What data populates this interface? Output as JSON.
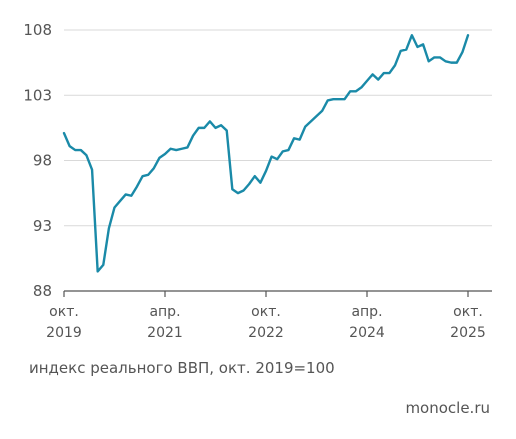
{
  "chart_data": {
    "type": "line",
    "title": "",
    "caption": "индекс реального ВВП, окт. 2019=100",
    "source": "monocle.ru",
    "y_ticks": [
      88,
      93,
      98,
      103,
      108
    ],
    "ylim": [
      88,
      108
    ],
    "x_ticks": [
      {
        "date": "2019-10",
        "line1": "окт.",
        "line2": "2019"
      },
      {
        "date": "2021-04",
        "line1": "апр.",
        "line2": "2021"
      },
      {
        "date": "2022-10",
        "line1": "окт.",
        "line2": "2022"
      },
      {
        "date": "2024-04",
        "line1": "апр.",
        "line2": "2024"
      },
      {
        "date": "2025-10",
        "line1": "окт.",
        "line2": "2025"
      }
    ],
    "xlim": [
      "2019-10",
      "2025-10"
    ],
    "grid": true,
    "line_color": "#1a8aa8",
    "series": [
      {
        "x": [
          "2019-10",
          "2019-11",
          "2019-12",
          "2020-01",
          "2020-02",
          "2020-03",
          "2020-04",
          "2020-05",
          "2020-06",
          "2020-07",
          "2020-08",
          "2020-09",
          "2020-10",
          "2020-11",
          "2020-12",
          "2021-01",
          "2021-02",
          "2021-03",
          "2021-04",
          "2021-05",
          "2021-06",
          "2021-07",
          "2021-08",
          "2021-09",
          "2021-10",
          "2021-11",
          "2021-12",
          "2022-01",
          "2022-02",
          "2022-03",
          "2022-04",
          "2022-05",
          "2022-06",
          "2022-07",
          "2022-08",
          "2022-09",
          "2022-10",
          "2022-11",
          "2022-12",
          "2023-01",
          "2023-02",
          "2023-03",
          "2023-04",
          "2023-05",
          "2023-06",
          "2023-07",
          "2023-08",
          "2023-09",
          "2023-10",
          "2023-11",
          "2023-12",
          "2024-01",
          "2024-02",
          "2024-03",
          "2024-04",
          "2024-05",
          "2024-06",
          "2024-07",
          "2024-08",
          "2024-09",
          "2024-10",
          "2024-11",
          "2024-12",
          "2025-01",
          "2025-02",
          "2025-03",
          "2025-04",
          "2025-05",
          "2025-06",
          "2025-07",
          "2025-08",
          "2025-09",
          "2025-10"
        ],
        "values": [
          100.1,
          99.1,
          98.8,
          98.8,
          98.4,
          97.3,
          89.5,
          90.0,
          92.8,
          94.4,
          94.9,
          95.4,
          95.3,
          96.0,
          96.8,
          96.9,
          97.4,
          98.2,
          98.5,
          98.9,
          98.8,
          98.9,
          99.0,
          99.9,
          100.5,
          100.5,
          101.0,
          100.5,
          100.7,
          100.3,
          95.8,
          95.5,
          95.7,
          96.2,
          96.8,
          96.3,
          97.2,
          98.3,
          98.1,
          98.7,
          98.8,
          99.7,
          99.6,
          100.6,
          101.0,
          101.4,
          101.8,
          102.6,
          102.7,
          102.7,
          102.7,
          103.3,
          103.3,
          103.6,
          104.1,
          104.6,
          104.2,
          104.7,
          104.7,
          105.3,
          106.4,
          106.5,
          107.6,
          106.7,
          106.9,
          105.6,
          105.9,
          105.9,
          105.6,
          105.5,
          105.5,
          106.3,
          107.6
        ]
      }
    ]
  }
}
